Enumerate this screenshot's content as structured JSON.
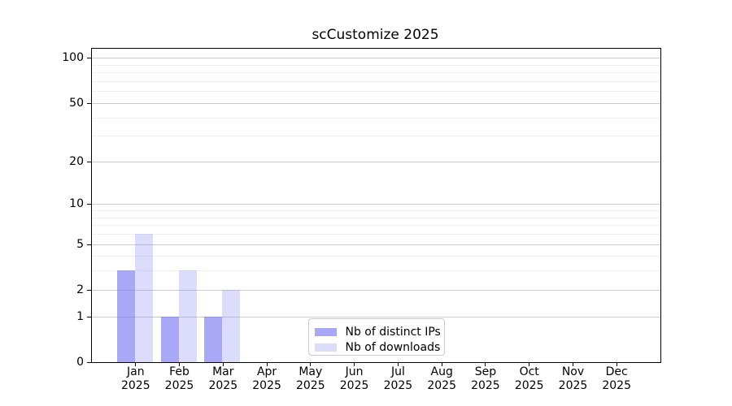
{
  "chart_data": {
    "type": "bar",
    "title": "scCustomize 2025",
    "categories": [
      "Jan",
      "Feb",
      "Mar",
      "Apr",
      "May",
      "Jun",
      "Jul",
      "Aug",
      "Sep",
      "Oct",
      "Nov",
      "Dec"
    ],
    "x_year_label": "2025",
    "series": [
      {
        "name": "Nb of distinct IPs",
        "color": "rgba(110,110,240,0.60)",
        "values": [
          3,
          1,
          1,
          0,
          0,
          0,
          0,
          0,
          0,
          0,
          0,
          0
        ]
      },
      {
        "name": "Nb of downloads",
        "color": "rgba(140,140,245,0.30)",
        "values": [
          6,
          3,
          2,
          0,
          0,
          0,
          0,
          0,
          0,
          0,
          0,
          0
        ]
      }
    ],
    "yscale": "log1p",
    "ylim": [
      0,
      115
    ],
    "yticks": [
      0,
      1,
      2,
      5,
      10,
      20,
      50,
      100
    ],
    "minor_gridlines": [
      3,
      4,
      6,
      7,
      8,
      9,
      30,
      40,
      60,
      70,
      80,
      90
    ],
    "grid": true,
    "legend_position": "lower center"
  },
  "style": {
    "major_grid_color": "#cccccc",
    "minor_grid_color": "#f0f0f0",
    "spine_color": "#000000",
    "text_color": "#000000",
    "legend_border_color": "#cccccc",
    "background": "#ffffff"
  }
}
